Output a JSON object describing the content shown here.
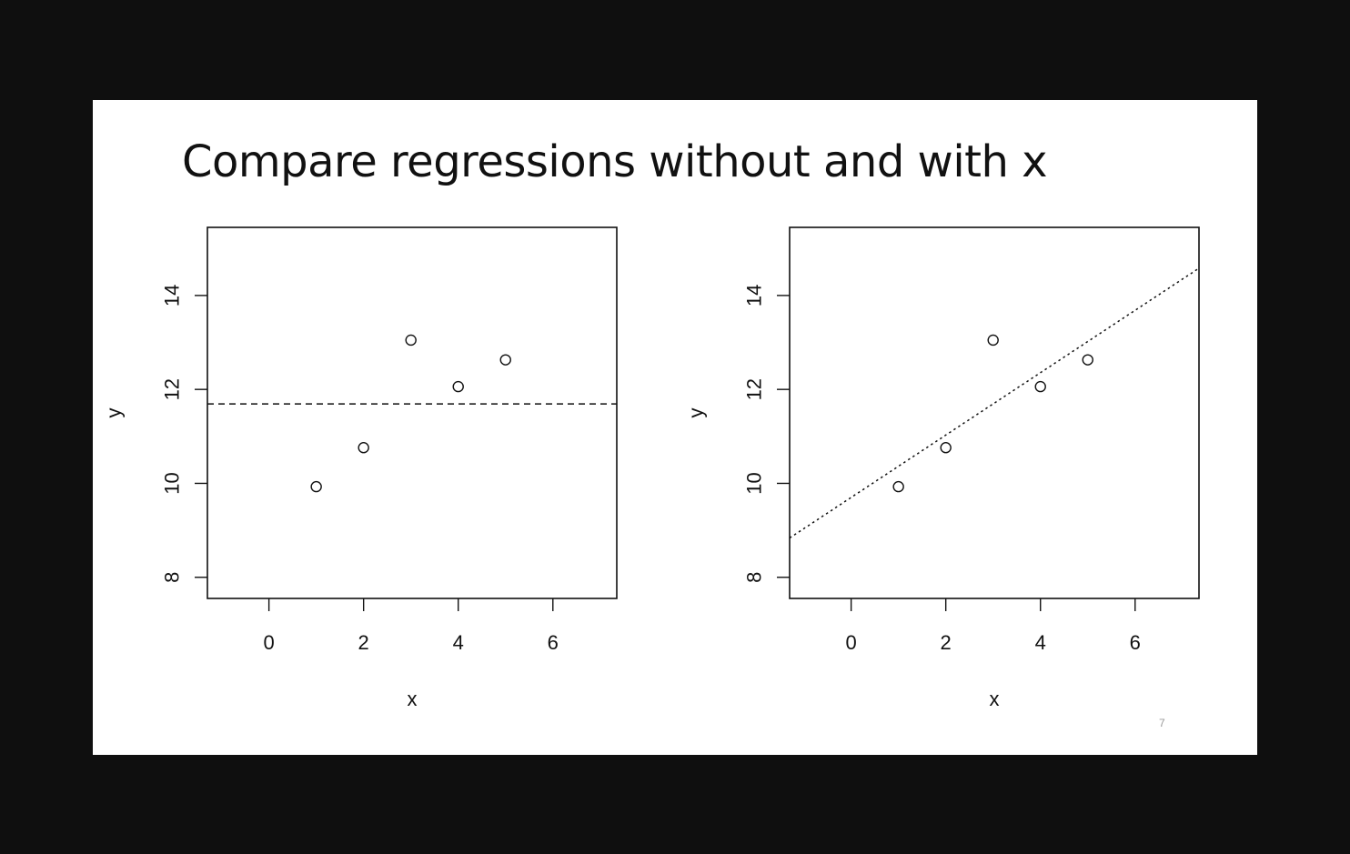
{
  "slide": {
    "title": "Compare regressions without and with x",
    "page_number": "7"
  },
  "chart_data": [
    {
      "type": "scatter",
      "xlabel": "x",
      "ylabel": "y",
      "xlim": [
        -1.3,
        7.35
      ],
      "ylim": [
        7.55,
        15.45
      ],
      "xticks": [
        0,
        2,
        4,
        6
      ],
      "yticks": [
        8,
        10,
        12,
        14
      ],
      "grid": false,
      "points": {
        "x": [
          1,
          2,
          3,
          4,
          5
        ],
        "y": [
          9.93,
          10.76,
          13.05,
          12.06,
          12.63
        ]
      },
      "fit_line": {
        "intercept": 11.69,
        "slope": 0,
        "style": "dashed"
      }
    },
    {
      "type": "scatter",
      "xlabel": "x",
      "ylabel": "y",
      "xlim": [
        -1.3,
        7.35
      ],
      "ylim": [
        7.55,
        15.45
      ],
      "xticks": [
        0,
        2,
        4,
        6
      ],
      "yticks": [
        8,
        10,
        12,
        14
      ],
      "grid": false,
      "points": {
        "x": [
          1,
          2,
          3,
          4,
          5
        ],
        "y": [
          9.93,
          10.76,
          13.05,
          12.06,
          12.63
        ]
      },
      "fit_line": {
        "intercept": 9.7,
        "slope": 0.664,
        "style": "dotted"
      }
    }
  ]
}
